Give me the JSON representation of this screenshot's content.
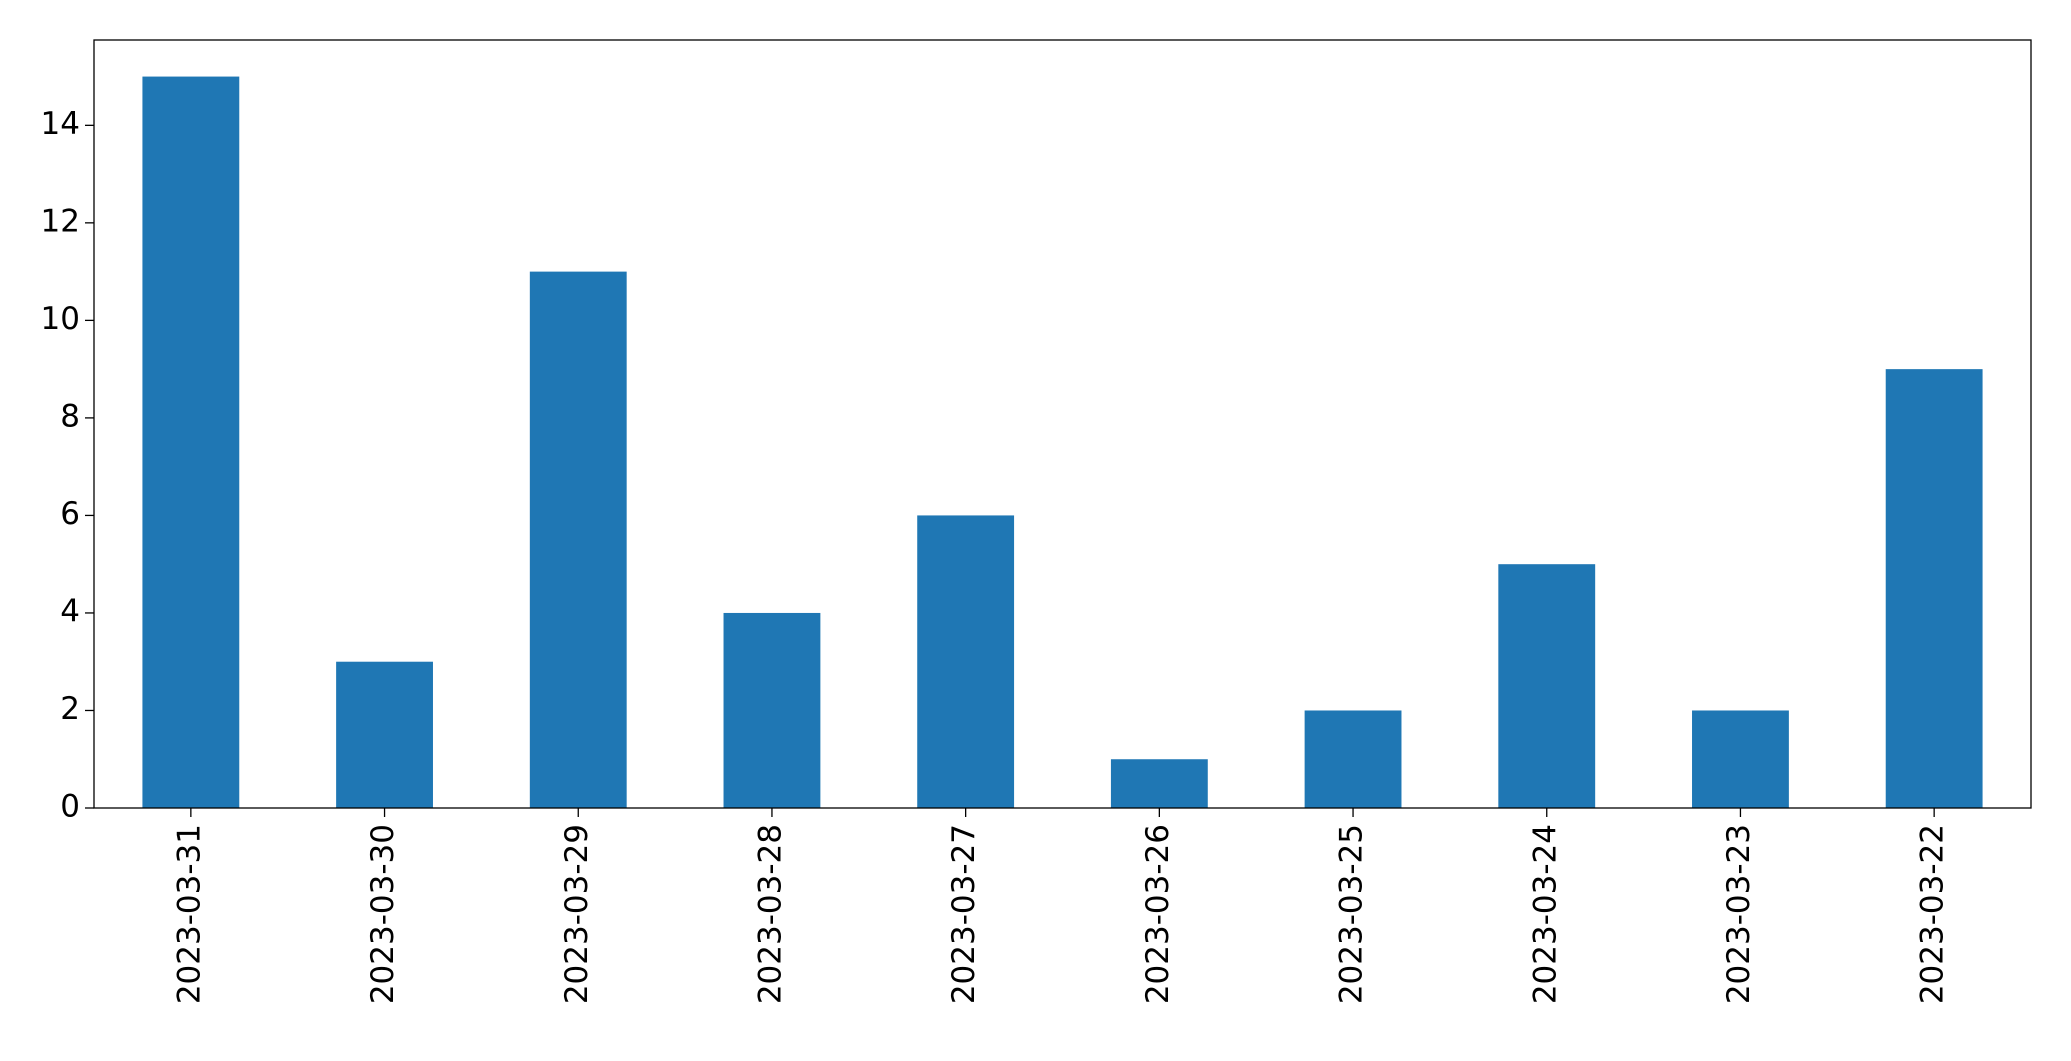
{
  "chart_data": {
    "type": "bar",
    "categories": [
      "2023-03-31",
      "2023-03-30",
      "2023-03-29",
      "2023-03-28",
      "2023-03-27",
      "2023-03-26",
      "2023-03-25",
      "2023-03-24",
      "2023-03-23",
      "2023-03-22"
    ],
    "values": [
      15,
      3,
      11,
      4,
      6,
      1,
      2,
      5,
      2,
      9
    ],
    "color": "#1f77b4",
    "ylim": [
      0,
      15.75
    ],
    "yticks": [
      0,
      2,
      4,
      6,
      8,
      10,
      12,
      14
    ],
    "grid": false
  }
}
